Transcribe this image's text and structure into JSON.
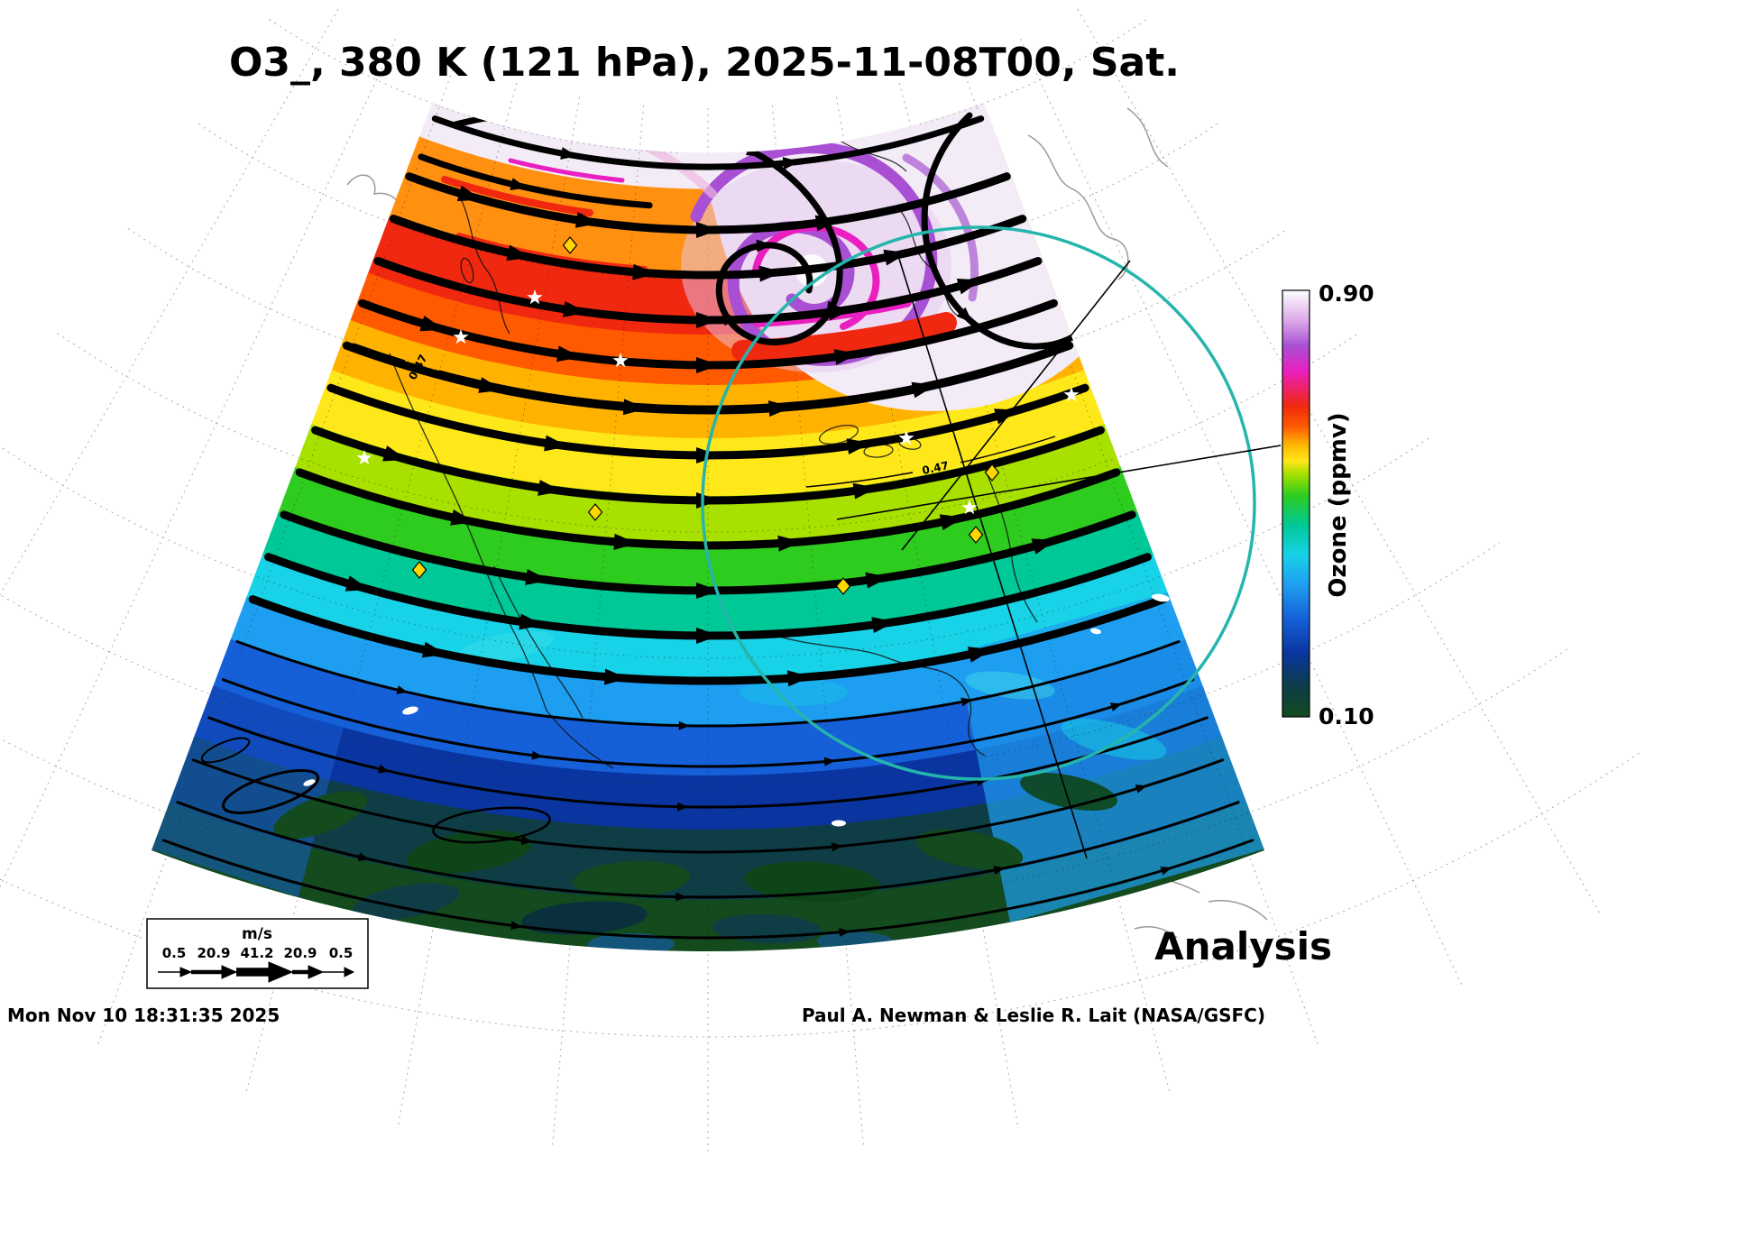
{
  "title": "O3_, 380 K (121 hPa), 2025-11-08T00, Sat.",
  "colorbar": {
    "label": "Ozone (ppmv)",
    "tick_max": "0.90",
    "tick_min": "0.10",
    "stops": [
      [
        "0%",
        "#134a1e"
      ],
      [
        "7%",
        "#0e3d46"
      ],
      [
        "15%",
        "#0a35a0"
      ],
      [
        "23%",
        "#1560d8"
      ],
      [
        "31%",
        "#1e9ef0"
      ],
      [
        "38%",
        "#18d2e8"
      ],
      [
        "45%",
        "#00c896"
      ],
      [
        "52%",
        "#2ecc1e"
      ],
      [
        "57%",
        "#a8e000"
      ],
      [
        "60%",
        "#ffe81a"
      ],
      [
        "64%",
        "#ffb300"
      ],
      [
        "68%",
        "#ff5a00"
      ],
      [
        "73%",
        "#f02810"
      ],
      [
        "81%",
        "#ea1fc0"
      ],
      [
        "87%",
        "#a94fd4"
      ],
      [
        "93%",
        "#dcaae8"
      ],
      [
        "100%",
        "#ffffff"
      ]
    ]
  },
  "palette": {
    "pale": "#f3ecf7",
    "orange": "#ff9010",
    "red": "#f02810",
    "red_orange": "#ff5a00",
    "amber": "#ffb300",
    "yellow": "#ffe81a",
    "yellow_green": "#a8e000",
    "green": "#2ecc1e",
    "teal": "#00c896",
    "cyan": "#18d2e8",
    "light_blue": "#1e9ef0",
    "blue": "#1560d8",
    "dark_blue": "#0a35a0",
    "navy": "#0e3d46",
    "dark_green": "#134a1e",
    "purple": "#a94fd4",
    "magenta": "#ea1fc0",
    "lavender": "#dcaae8",
    "vortex_circle": "#25b5ad",
    "marker_yellow": "#ffd700"
  },
  "wind_legend": {
    "units": "m/s",
    "values": [
      "0.5",
      "20.9",
      "41.2",
      "20.9",
      "0.5"
    ]
  },
  "annotations": {
    "analysis": "Analysis",
    "contour_label": "0.47"
  },
  "footer": {
    "timestamp": "Mon Nov 10 18:31:35 2025",
    "credit": "Paul A. Newman & Leslie R. Lait (NASA/GSFC)"
  }
}
